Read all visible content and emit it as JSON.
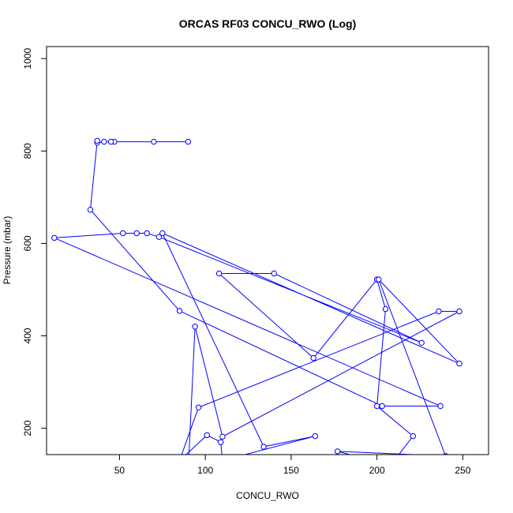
{
  "chart_data": {
    "type": "line",
    "title": "ORCAS RF03 CONCU_RWO (Log)",
    "xlabel": "CONCU_RWO",
    "ylabel": "Pressure (mbar)",
    "xlim": [
      7.5,
      265
    ],
    "ylim": [
      1026,
      143
    ],
    "y_reversed": true,
    "x_ticks": [
      50,
      100,
      150,
      200,
      250
    ],
    "y_ticks": [
      200,
      400,
      600,
      800,
      1000
    ],
    "grid": false,
    "line_color": "#0000ff",
    "marker": "open-circle",
    "series": [
      {
        "x": [
          90,
          70,
          47,
          45,
          41,
          37,
          37,
          33,
          85,
          203,
          237,
          12,
          52,
          60,
          66,
          73,
          226,
          140,
          108,
          163,
          200,
          205,
          200,
          221,
          208,
          177,
          240,
          201,
          248,
          75,
          134,
          164,
          110,
          109,
          101,
          85,
          96,
          236,
          248,
          110,
          94,
          90
        ],
        "y": [
          820,
          820,
          820,
          820,
          820,
          818,
          822,
          673,
          454,
          248,
          248,
          612,
          622,
          622,
          622,
          614,
          385,
          535,
          535,
          352,
          522,
          458,
          248,
          183,
          120,
          150,
          140,
          522,
          340,
          622,
          160,
          183,
          130,
          170,
          185,
          130,
          245,
          453,
          453,
          182,
          420,
          105
        ]
      }
    ]
  }
}
